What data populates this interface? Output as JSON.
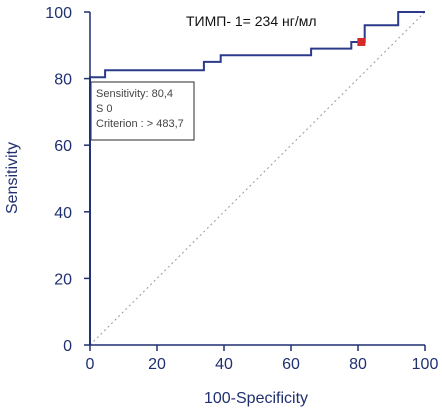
{
  "chart_data": {
    "type": "line",
    "title": "",
    "xlabel": "100-Specificity",
    "ylabel": "Sensitivity",
    "xlim": [
      0,
      100
    ],
    "ylim": [
      0,
      100
    ],
    "x_ticks": [
      "0",
      "20",
      "40",
      "60",
      "80",
      "100"
    ],
    "y_ticks": [
      "0",
      "20",
      "40",
      "60",
      "80",
      "100"
    ],
    "grid": false,
    "legend": "none",
    "series": [
      {
        "name": "",
        "color": "#2b3a8a",
        "style": "step",
        "points": [
          [
            0,
            0
          ],
          [
            0,
            80.4
          ],
          [
            4.5,
            80.4
          ],
          [
            4.5,
            82.5
          ],
          [
            34,
            82.5
          ],
          [
            34,
            85
          ],
          [
            39,
            85
          ],
          [
            39,
            87
          ],
          [
            66,
            87
          ],
          [
            66,
            89
          ],
          [
            78,
            89
          ],
          [
            78,
            91
          ],
          [
            82,
            91
          ],
          [
            82,
            96
          ],
          [
            92,
            96
          ],
          [
            92,
            100
          ],
          [
            100,
            100
          ]
        ]
      },
      {
        "name": "",
        "color": "#9a9a9a",
        "style": "dotted",
        "points": [
          [
            0,
            0
          ],
          [
            100,
            100
          ]
        ]
      }
    ],
    "cutoff_marker": {
      "x": 81,
      "y": 91,
      "color": "#d42a2a"
    },
    "annotation": "ТИМП- 1= 234 нг/мл",
    "info_box_lines": [
      "Sensitivity: 80,4",
      "S                        0",
      "Criterion : > 483,7"
    ]
  }
}
